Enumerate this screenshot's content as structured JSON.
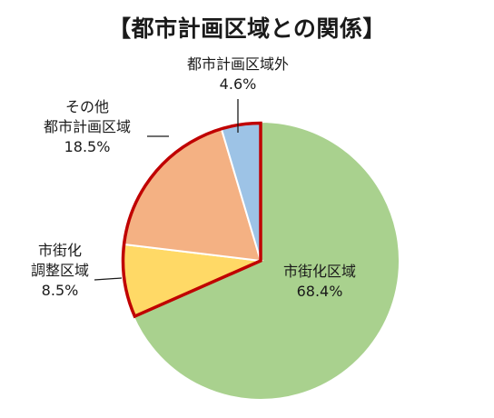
{
  "chart_data": {
    "type": "pie",
    "title": "【都市計画区域との関係】",
    "slices": [
      {
        "name": "市街化区域",
        "value": 68.4,
        "value_label": "68.4%",
        "color": "#a9d18e"
      },
      {
        "name": "市街化\n調整区域",
        "value": 8.5,
        "value_label": "8.5%",
        "color": "#ffd966"
      },
      {
        "name": "その他\n都市計画区域",
        "value": 18.5,
        "value_label": "18.5%",
        "color": "#f4b183"
      },
      {
        "name": "都市計画区域外",
        "value": 4.6,
        "value_label": "4.6%",
        "color": "#9dc3e6"
      }
    ],
    "start_at": "top",
    "direction": "clockwise",
    "highlight": {
      "slices": [
        "市街化\n調整区域",
        "その他\n都市計画区域",
        "都市計画区域外"
      ],
      "outline_color": "#c00000"
    }
  }
}
